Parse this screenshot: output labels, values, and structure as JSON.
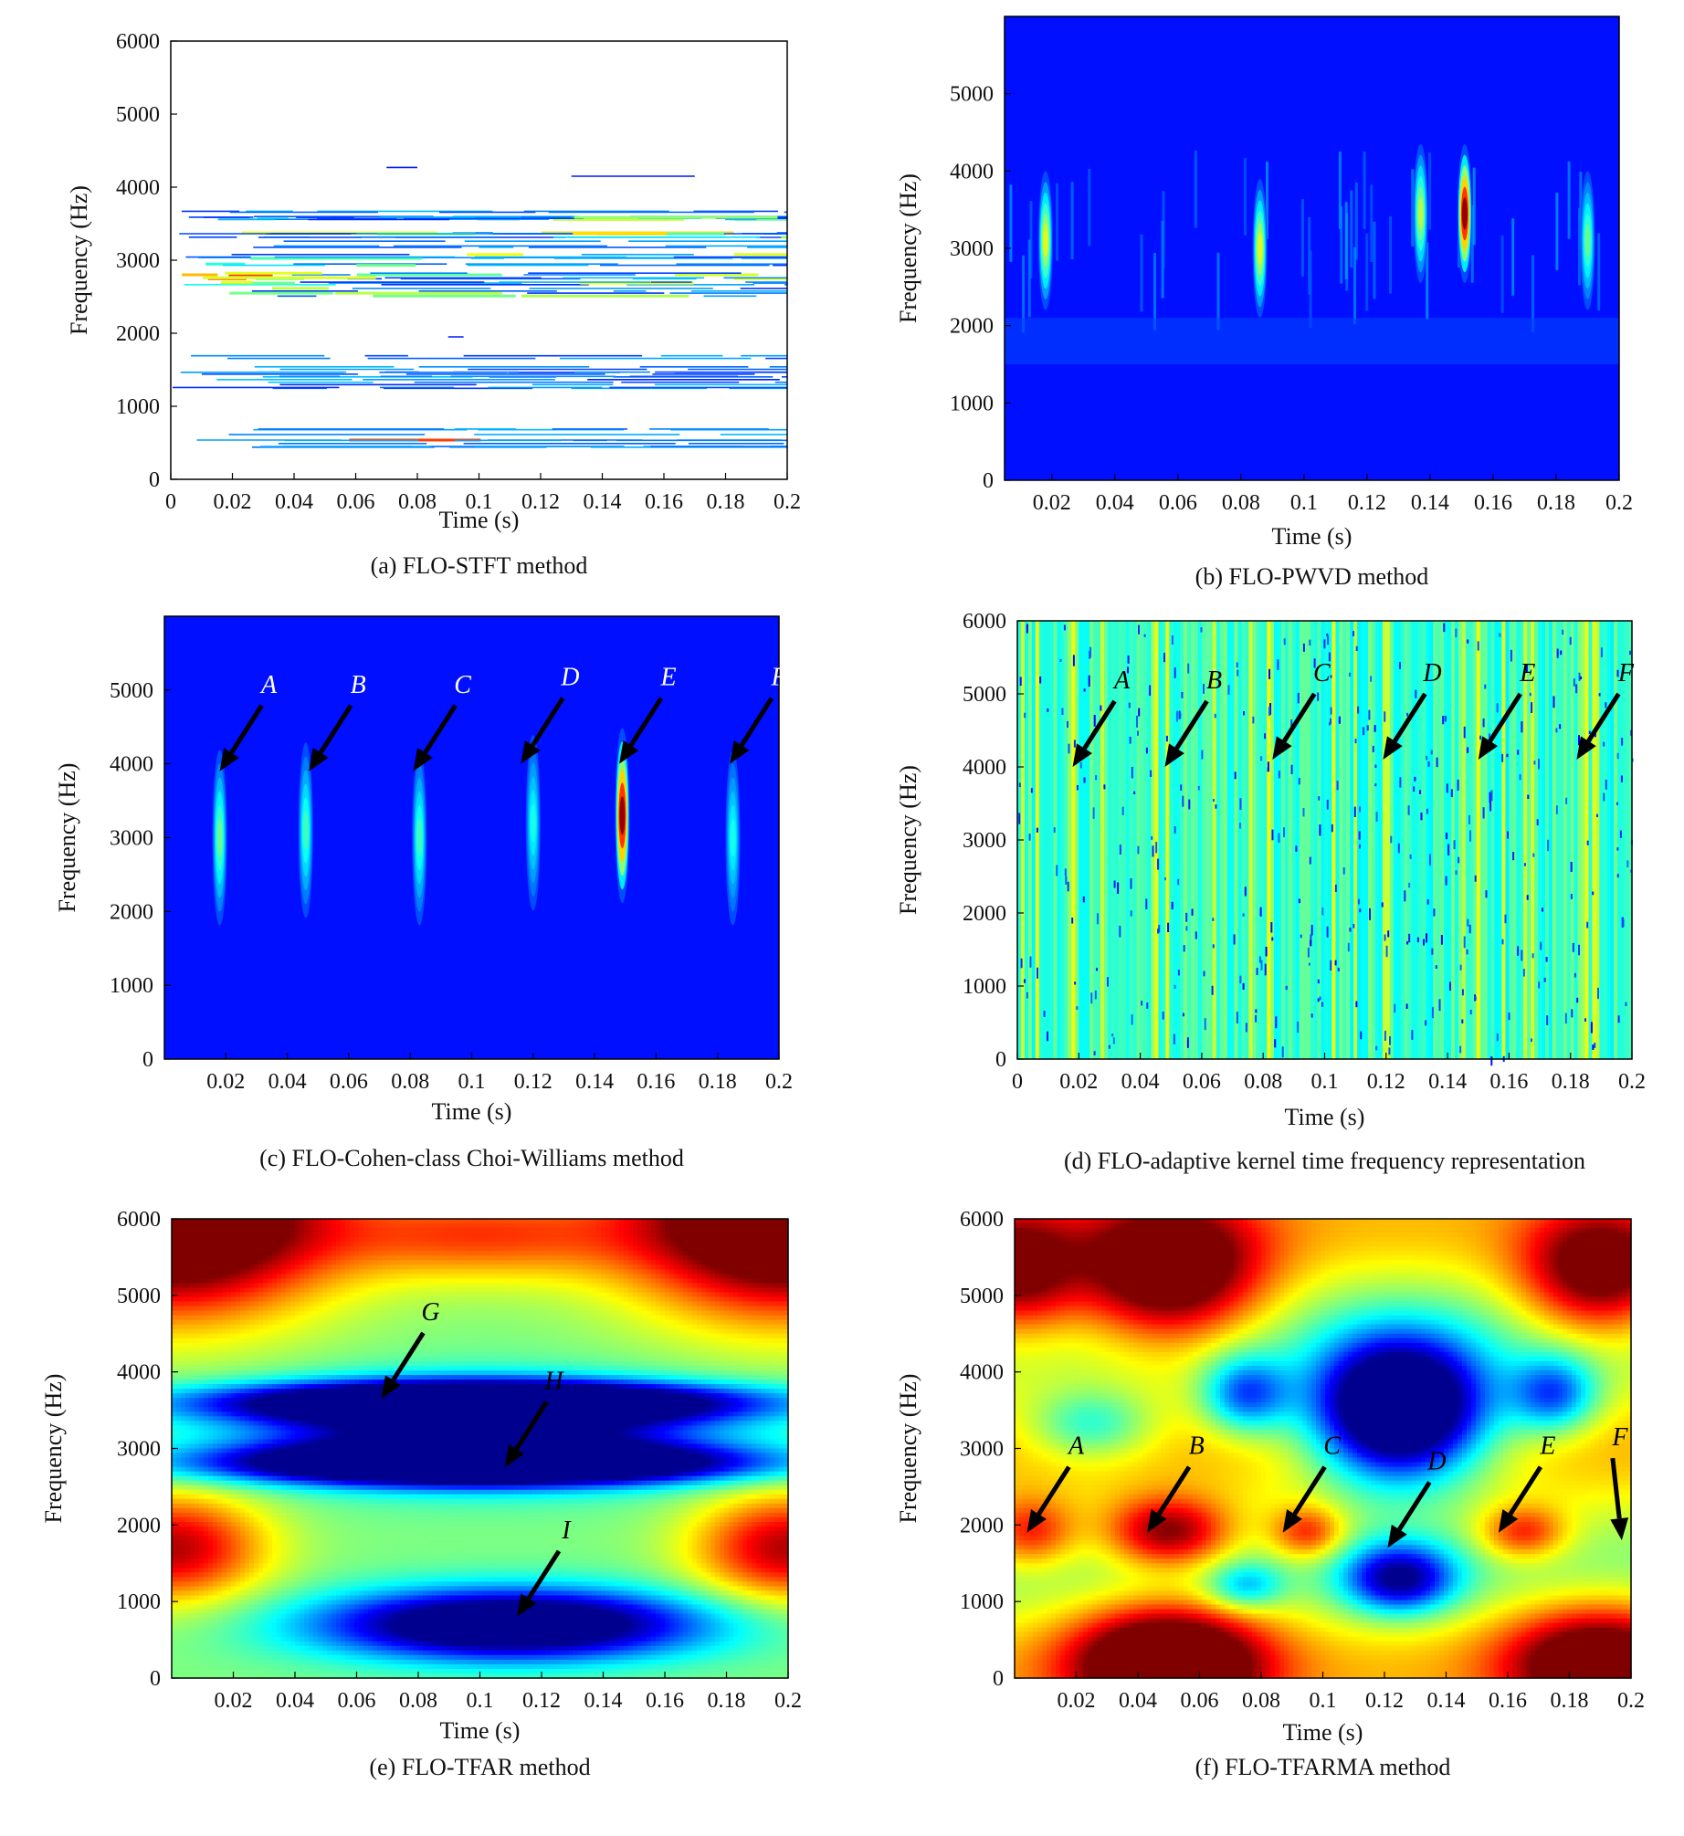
{
  "chart_data": [
    {
      "id": "a",
      "type": "heatmap",
      "style": "contour",
      "caption": "(a) FLO-STFT method",
      "xlabel": "Time (s)",
      "ylabel": "Frequency (Hz)",
      "xlim": [
        0,
        0.2
      ],
      "ylim": [
        0,
        6000
      ],
      "xticks": [
        "0",
        "0.02",
        "0.04",
        "0.06",
        "0.08",
        "0.1",
        "0.12",
        "0.14",
        "0.16",
        "0.18",
        "0.2"
      ],
      "yticks": [
        "0",
        "1000",
        "2000",
        "3000",
        "4000",
        "5000",
        "6000"
      ],
      "energy_bands": [
        {
          "freq_range": [
            2500,
            3700
          ],
          "hotspots": [
            {
              "t": 0.02,
              "f": 2800
            },
            {
              "t": 0.145,
              "f": 3450
            }
          ]
        },
        {
          "freq_range": [
            1200,
            1700
          ],
          "hotspots": []
        },
        {
          "freq_range": [
            400,
            700
          ],
          "hotspots": [
            {
              "t": 0.085,
              "f": 550
            }
          ]
        }
      ],
      "annotations": []
    },
    {
      "id": "b",
      "type": "heatmap",
      "style": "image",
      "caption": "(b) FLO-PWVD method",
      "xlabel": "Time (s)",
      "ylabel": "Frequency (Hz)",
      "xlim": [
        0.005,
        0.2
      ],
      "ylim": [
        0,
        6000
      ],
      "xticks": [
        "0.02",
        "0.04",
        "0.06",
        "0.08",
        "0.1",
        "0.12",
        "0.14",
        "0.16",
        "0.18",
        "0.2"
      ],
      "yticks": [
        "0",
        "1000",
        "2000",
        "3000",
        "4000",
        "5000"
      ],
      "hotspots": [
        {
          "t": 0.018,
          "f": 3100,
          "level": 0.5
        },
        {
          "t": 0.086,
          "f": 3000,
          "level": 0.5
        },
        {
          "t": 0.137,
          "f": 3450,
          "level": 0.45
        },
        {
          "t": 0.151,
          "f": 3450,
          "level": 1.0
        },
        {
          "t": 0.19,
          "f": 3100,
          "level": 0.35
        }
      ],
      "annotations": []
    },
    {
      "id": "c",
      "type": "heatmap",
      "style": "image",
      "caption": "(c) FLO-Cohen-class Choi-Williams method",
      "xlabel": "Time (s)",
      "ylabel": "Frequency (Hz)",
      "xlim": [
        0.0,
        0.2
      ],
      "ylim": [
        0,
        6000
      ],
      "xticks": [
        "0.02",
        "0.04",
        "0.06",
        "0.08",
        "0.1",
        "0.12",
        "0.14",
        "0.16",
        "0.18",
        "0.2"
      ],
      "yticks": [
        "0",
        "1000",
        "2000",
        "3000",
        "4000",
        "5000"
      ],
      "hotspots": [
        {
          "t": 0.018,
          "f": 3000,
          "level": 0.35
        },
        {
          "t": 0.046,
          "f": 3100,
          "level": 0.3
        },
        {
          "t": 0.083,
          "f": 3000,
          "level": 0.3
        },
        {
          "t": 0.12,
          "f": 3200,
          "level": 0.25
        },
        {
          "t": 0.149,
          "f": 3300,
          "level": 1.0
        },
        {
          "t": 0.185,
          "f": 3000,
          "level": 0.25
        }
      ],
      "annotations": [
        {
          "label": "A",
          "t": 0.018,
          "f": 3900
        },
        {
          "label": "B",
          "t": 0.047,
          "f": 3900
        },
        {
          "label": "C",
          "t": 0.081,
          "f": 3900
        },
        {
          "label": "D",
          "t": 0.116,
          "f": 4000
        },
        {
          "label": "E",
          "t": 0.148,
          "f": 4000
        },
        {
          "label": "F",
          "t": 0.184,
          "f": 4000
        }
      ]
    },
    {
      "id": "d",
      "type": "heatmap",
      "style": "image",
      "caption": "(d) FLO-adaptive kernel time frequency representation",
      "xlabel": "Time (s)",
      "ylabel": "Frequency (Hz)",
      "xlim": [
        0,
        0.2
      ],
      "ylim": [
        0,
        6000
      ],
      "xticks": [
        "0",
        "0.02",
        "0.04",
        "0.06",
        "0.08",
        "0.1",
        "0.12",
        "0.14",
        "0.16",
        "0.18",
        "0.2"
      ],
      "yticks": [
        "0",
        "1000",
        "2000",
        "3000",
        "4000",
        "5000",
        "6000"
      ],
      "bright_stripes_t": [
        0.018,
        0.045,
        0.082,
        0.12,
        0.15,
        0.185
      ],
      "annotations": [
        {
          "label": "A",
          "t": 0.018,
          "f": 4000
        },
        {
          "label": "B",
          "t": 0.048,
          "f": 4000
        },
        {
          "label": "C",
          "t": 0.083,
          "f": 4100
        },
        {
          "label": "D",
          "t": 0.119,
          "f": 4100
        },
        {
          "label": "E",
          "t": 0.15,
          "f": 4100
        },
        {
          "label": "F",
          "t": 0.182,
          "f": 4100
        }
      ]
    },
    {
      "id": "e",
      "type": "heatmap",
      "style": "filled-contour",
      "caption": "(e) FLO-TFAR method",
      "xlabel": "Time (s)",
      "ylabel": "Frequency (Hz)",
      "xlim": [
        0.0,
        0.2
      ],
      "ylim": [
        0,
        6000
      ],
      "xticks": [
        "0.02",
        "0.04",
        "0.06",
        "0.08",
        "0.1",
        "0.12",
        "0.14",
        "0.16",
        "0.18",
        "0.2"
      ],
      "yticks": [
        "0",
        "1000",
        "2000",
        "3000",
        "4000",
        "5000",
        "6000"
      ],
      "features": [
        {
          "kind": "low",
          "t": 0.1,
          "f": 3600,
          "rt": 0.08,
          "rf": 250,
          "depth": 0.9
        },
        {
          "kind": "low",
          "t": 0.1,
          "f": 2800,
          "rt": 0.08,
          "rf": 250,
          "depth": 0.9
        },
        {
          "kind": "low",
          "t": 0.1,
          "f": 3200,
          "rt": 0.07,
          "rf": 600,
          "depth": 0.6
        },
        {
          "kind": "low",
          "t": 0.11,
          "f": 700,
          "rt": 0.06,
          "rf": 450,
          "depth": 0.75
        },
        {
          "kind": "high",
          "t": 0.0,
          "f": 6000,
          "rt": 0.05,
          "rf": 1200,
          "depth": 0.8
        },
        {
          "kind": "high",
          "t": 0.2,
          "f": 6000,
          "rt": 0.05,
          "rf": 1200,
          "depth": 0.8
        },
        {
          "kind": "high",
          "t": 0.0,
          "f": 1700,
          "rt": 0.03,
          "rf": 700,
          "depth": 0.45
        },
        {
          "kind": "high",
          "t": 0.2,
          "f": 1700,
          "rt": 0.03,
          "rf": 700,
          "depth": 0.45
        },
        {
          "kind": "high",
          "t": 0.1,
          "f": 5800,
          "rt": 0.05,
          "rf": 600,
          "depth": 0.3
        }
      ],
      "annotations": [
        {
          "label": "G",
          "t": 0.068,
          "f": 3650
        },
        {
          "label": "H",
          "t": 0.108,
          "f": 2750
        },
        {
          "label": "I",
          "t": 0.112,
          "f": 800
        }
      ]
    },
    {
      "id": "f",
      "type": "heatmap",
      "style": "filled-contour",
      "caption": "(f) FLO-TFARMA method",
      "xlabel": "Time (s)",
      "ylabel": "Frequency (Hz)",
      "xlim": [
        0.0,
        0.2
      ],
      "ylim": [
        0,
        6000
      ],
      "xticks": [
        "0.02",
        "0.04",
        "0.06",
        "0.08",
        "0.1",
        "0.12",
        "0.14",
        "0.16",
        "0.18",
        "0.2"
      ],
      "yticks": [
        "0",
        "1000",
        "2000",
        "3000",
        "4000",
        "5000",
        "6000"
      ],
      "features": [
        {
          "kind": "low",
          "t": 0.125,
          "f": 3500,
          "rt": 0.028,
          "rf": 900,
          "depth": 1.0
        },
        {
          "kind": "low",
          "t": 0.125,
          "f": 1300,
          "rt": 0.018,
          "rf": 450,
          "depth": 0.55
        },
        {
          "kind": "low",
          "t": 0.075,
          "f": 3700,
          "rt": 0.014,
          "rf": 500,
          "depth": 0.4
        },
        {
          "kind": "low",
          "t": 0.175,
          "f": 3700,
          "rt": 0.014,
          "rf": 500,
          "depth": 0.4
        },
        {
          "kind": "low",
          "t": 0.075,
          "f": 1200,
          "rt": 0.012,
          "rf": 300,
          "depth": 0.25
        },
        {
          "kind": "low",
          "t": 0.025,
          "f": 3300,
          "rt": 0.02,
          "rf": 450,
          "depth": 0.25
        },
        {
          "kind": "high",
          "t": 0.05,
          "f": 5300,
          "rt": 0.03,
          "rf": 900,
          "depth": 0.6
        },
        {
          "kind": "high",
          "t": 0.0,
          "f": 5300,
          "rt": 0.02,
          "rf": 800,
          "depth": 0.45
        },
        {
          "kind": "high",
          "t": 0.19,
          "f": 5300,
          "rt": 0.025,
          "rf": 800,
          "depth": 0.5
        },
        {
          "kind": "high",
          "t": 0.05,
          "f": 200,
          "rt": 0.03,
          "rf": 700,
          "depth": 0.7
        },
        {
          "kind": "high",
          "t": 0.19,
          "f": 200,
          "rt": 0.03,
          "rf": 700,
          "depth": 0.55
        },
        {
          "kind": "high",
          "t": 0.05,
          "f": 1900,
          "rt": 0.02,
          "rf": 450,
          "depth": 0.45
        },
        {
          "kind": "high",
          "t": 0.005,
          "f": 1900,
          "rt": 0.015,
          "rf": 450,
          "depth": 0.3
        },
        {
          "kind": "high",
          "t": 0.095,
          "f": 1900,
          "rt": 0.012,
          "rf": 350,
          "depth": 0.3
        },
        {
          "kind": "high",
          "t": 0.165,
          "f": 1900,
          "rt": 0.014,
          "rf": 350,
          "depth": 0.3
        }
      ],
      "annotations": [
        {
          "label": "A",
          "t": 0.004,
          "f": 1900
        },
        {
          "label": "B",
          "t": 0.043,
          "f": 1900
        },
        {
          "label": "C",
          "t": 0.087,
          "f": 1900
        },
        {
          "label": "D",
          "t": 0.121,
          "f": 1700
        },
        {
          "label": "E",
          "t": 0.157,
          "f": 1900
        },
        {
          "label": "F",
          "t": 0.197,
          "f": 1800
        }
      ]
    }
  ]
}
